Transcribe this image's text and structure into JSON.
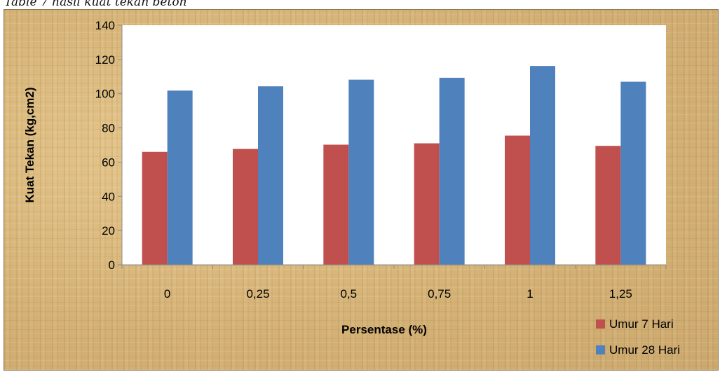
{
  "caption": "Table 7 hasil kuat tekan beton",
  "chart_data": {
    "type": "bar",
    "categories": [
      "0",
      "0,25",
      "0,5",
      "0,75",
      "1",
      "1,25"
    ],
    "series": [
      {
        "name": "Umur 7 Hari",
        "color": "#c0504d",
        "values": [
          66,
          67.7,
          70.2,
          71,
          75.5,
          69.5
        ]
      },
      {
        "name": "Umur 28 Hari",
        "color": "#4f81bd",
        "values": [
          101.8,
          104.3,
          108.2,
          109.3,
          116.2,
          107
        ]
      }
    ],
    "title": "",
    "xlabel": "Persentase (%)",
    "ylabel": "Kuat Tekan (kg,cm2)",
    "ylim": [
      0,
      140
    ],
    "yticks": [
      "0",
      "20",
      "40",
      "60",
      "80",
      "100",
      "120",
      "140"
    ],
    "grid": false,
    "legend": "bottom-right"
  }
}
